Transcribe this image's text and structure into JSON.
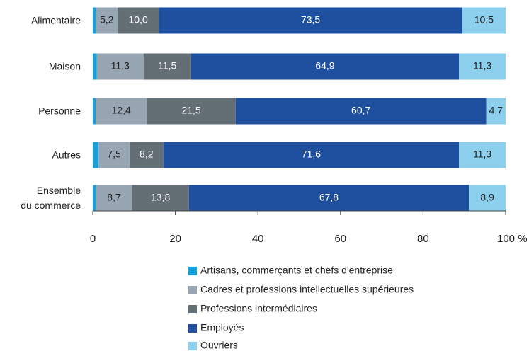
{
  "chart_data": {
    "type": "stacked_bar_horizontal",
    "categories": [
      "Alimentaire",
      "Maison",
      "Personne",
      "Autres",
      "Ensemble\ndu commerce"
    ],
    "series": [
      {
        "name": "Artisans, commerçants et chefs d'entreprise",
        "color": "#1aa0d8",
        "values": [
          0.8,
          1.0,
          0.7,
          1.4,
          0.8
        ]
      },
      {
        "name": "Cadres et professions intellectuelles supérieures",
        "color": "#98a6b4",
        "values": [
          5.2,
          11.3,
          12.4,
          7.5,
          8.7
        ],
        "value_labels": [
          "5,2",
          "11,3",
          "12,4",
          "7,5",
          "8,7"
        ]
      },
      {
        "name": "Professions intermédiaires",
        "color": "#646e75",
        "values": [
          10.0,
          11.5,
          21.5,
          8.2,
          13.8
        ],
        "value_labels": [
          "10,0",
          "11,5",
          "21,5",
          "8,2",
          "13,8"
        ]
      },
      {
        "name": "Employés",
        "color": "#1f4f9f",
        "values": [
          73.5,
          64.9,
          60.7,
          71.6,
          67.8
        ],
        "value_labels": [
          "73,5",
          "64,9",
          "60,7",
          "71,6",
          "67,8"
        ]
      },
      {
        "name": "Ouvriers",
        "color": "#8dd0ee",
        "values": [
          10.5,
          11.3,
          4.7,
          11.3,
          8.9
        ],
        "value_labels": [
          "10,5",
          "11,3",
          "4,7",
          "11,3",
          "8,9"
        ]
      }
    ],
    "xlim": [
      0,
      100
    ],
    "xticks": [
      0,
      20,
      40,
      60,
      80,
      {
        "value": 100,
        "label": "100 %"
      }
    ]
  }
}
